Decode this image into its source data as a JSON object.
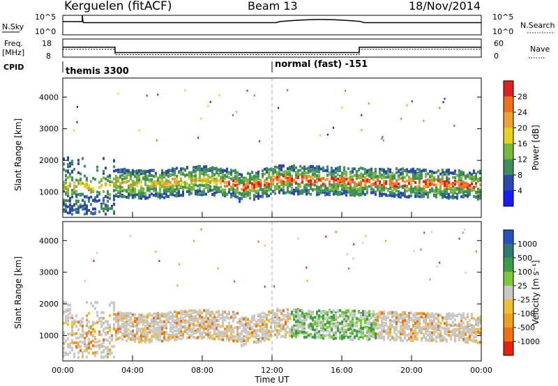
{
  "header": {
    "title": "Kerguelen (fitACF)",
    "beam": "Beam 13",
    "date": "18/Nov/2014"
  },
  "nsky_panel": {
    "left_label": "N.Sky",
    "left_ticks": [
      "10^5",
      "10^0"
    ],
    "right_ticks": [
      "10^5",
      "10^0"
    ],
    "right_label": "N.Search"
  },
  "freq_panel": {
    "left_label_line1": "Freq.",
    "left_label_line2": "[MHz]",
    "left_ticks": [
      "18",
      "8"
    ],
    "right_ticks": [
      "60",
      "0"
    ],
    "right_label": "Nave",
    "cpid_label": "CPID",
    "segments_mhz": [
      {
        "from": "00:00",
        "to": "03:00",
        "value": 13.5
      },
      {
        "from": "03:00",
        "to": "17:00",
        "value": 10.5
      },
      {
        "from": "17:00",
        "to": "24:00",
        "value": 13.5
      }
    ]
  },
  "cpid": {
    "left": "themis 3300",
    "right": "normal (fast) -151"
  },
  "chart_data": [
    {
      "type": "heatmap",
      "name": "power",
      "ylabel": "Slant Range [km]",
      "yticks": [
        "1000",
        "2000",
        "3000",
        "4000"
      ],
      "ylim": [
        200,
        4600
      ],
      "xlim": [
        "00:00",
        "24:00"
      ],
      "colorbar": {
        "label": "Power [dB]",
        "ticks": [
          "4",
          "8",
          "12",
          "16",
          "20",
          "24",
          "28"
        ],
        "colors": [
          "#1a1aff",
          "#2b48b0",
          "#3f8f5a",
          "#78b83a",
          "#e8d020",
          "#f0a030",
          "#f07020",
          "#e02020"
        ]
      }
    },
    {
      "type": "heatmap",
      "name": "velocity",
      "ylabel": "Slant Range [km]",
      "yticks": [
        "1000",
        "2000",
        "3000",
        "4000"
      ],
      "ylim": [
        200,
        4600
      ],
      "xlim": [
        "00:00",
        "24:00"
      ],
      "xlabel": "Time UT",
      "xticks": [
        "00:00",
        "04:00",
        "08:00",
        "12:00",
        "16:00",
        "20:00",
        "00:00"
      ],
      "colorbar": {
        "label": "Velocity [m s⁻¹]",
        "ticks": [
          "1000",
          "500",
          "100",
          "25",
          "-25",
          "-100",
          "-500",
          "-1000"
        ],
        "colors": [
          "#2850c0",
          "#2e7a70",
          "#3a9e45",
          "#7ac83c",
          "#c8c8c8",
          "#f0c030",
          "#f0a020",
          "#f07010",
          "#e82010"
        ]
      }
    }
  ]
}
